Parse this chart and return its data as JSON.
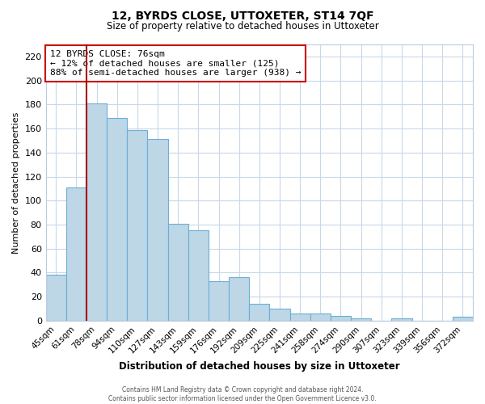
{
  "title": "12, BYRDS CLOSE, UTTOXETER, ST14 7QF",
  "subtitle": "Size of property relative to detached houses in Uttoxeter",
  "xlabel": "Distribution of detached houses by size in Uttoxeter",
  "ylabel": "Number of detached properties",
  "bar_labels": [
    "45sqm",
    "61sqm",
    "78sqm",
    "94sqm",
    "110sqm",
    "127sqm",
    "143sqm",
    "159sqm",
    "176sqm",
    "192sqm",
    "209sqm",
    "225sqm",
    "241sqm",
    "258sqm",
    "274sqm",
    "290sqm",
    "307sqm",
    "323sqm",
    "339sqm",
    "356sqm",
    "372sqm"
  ],
  "bar_values": [
    38,
    111,
    181,
    169,
    159,
    151,
    81,
    75,
    33,
    36,
    14,
    10,
    6,
    6,
    4,
    2,
    0,
    2,
    0,
    0,
    3
  ],
  "bar_color": "#bdd7e7",
  "bar_edge_color": "#6baed6",
  "vline_color": "#aa0000",
  "ylim": [
    0,
    230
  ],
  "yticks": [
    0,
    20,
    40,
    60,
    80,
    100,
    120,
    140,
    160,
    180,
    200,
    220
  ],
  "annotation_title": "12 BYRDS CLOSE: 76sqm",
  "annotation_line1": "← 12% of detached houses are smaller (125)",
  "annotation_line2": "88% of semi-detached houses are larger (938) →",
  "annotation_box_color": "#ffffff",
  "annotation_box_edge_color": "#cc0000",
  "footer_line1": "Contains HM Land Registry data © Crown copyright and database right 2024.",
  "footer_line2": "Contains public sector information licensed under the Open Government Licence v3.0.",
  "background_color": "#ffffff",
  "grid_color": "#c8d8e8"
}
